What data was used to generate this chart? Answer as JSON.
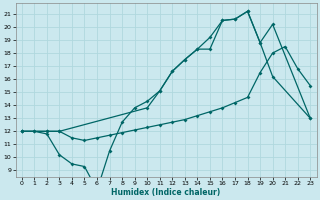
{
  "xlabel": "Humidex (Indice chaleur)",
  "bg_color": "#cbe8ee",
  "line_color": "#006666",
  "grid_color": "#b0d8de",
  "ylim": [
    8.5,
    21.8
  ],
  "xlim": [
    -0.5,
    23.5
  ],
  "yticks": [
    9,
    10,
    11,
    12,
    13,
    14,
    15,
    16,
    17,
    18,
    19,
    20,
    21
  ],
  "xticks": [
    0,
    1,
    2,
    3,
    4,
    5,
    6,
    7,
    8,
    9,
    10,
    11,
    12,
    13,
    14,
    15,
    16,
    17,
    18,
    19,
    20,
    21,
    22,
    23
  ],
  "line1_x": [
    0,
    1,
    2,
    3,
    4,
    5,
    6,
    7,
    8,
    9,
    10,
    11,
    12,
    13,
    14,
    15,
    16,
    17,
    18,
    19,
    20,
    23
  ],
  "line1_y": [
    12,
    12,
    11.8,
    10.2,
    9.5,
    9.3,
    7.5,
    10.5,
    12.7,
    13.8,
    14.3,
    15.1,
    16.6,
    17.5,
    18.3,
    18.3,
    20.5,
    20.6,
    21.2,
    18.8,
    16.2,
    13.0
  ],
  "line2_x": [
    0,
    1,
    2,
    3,
    4,
    5,
    6,
    7,
    8,
    9,
    10,
    11,
    12,
    13,
    14,
    15,
    16,
    17,
    18,
    19,
    20,
    21,
    22,
    23
  ],
  "line2_y": [
    12,
    12,
    12,
    12,
    11.5,
    11.3,
    11.5,
    11.7,
    11.9,
    12.1,
    12.3,
    12.5,
    12.7,
    12.9,
    13.2,
    13.5,
    13.8,
    14.2,
    14.6,
    16.5,
    18.0,
    18.5,
    16.8,
    15.5
  ],
  "line3_x": [
    0,
    2,
    3,
    10,
    11,
    12,
    13,
    14,
    15,
    16,
    17,
    18,
    19,
    20,
    23
  ],
  "line3_y": [
    12,
    12,
    12,
    13.8,
    15.1,
    16.6,
    17.5,
    18.3,
    19.2,
    20.5,
    20.6,
    21.2,
    18.8,
    20.2,
    13.0
  ]
}
